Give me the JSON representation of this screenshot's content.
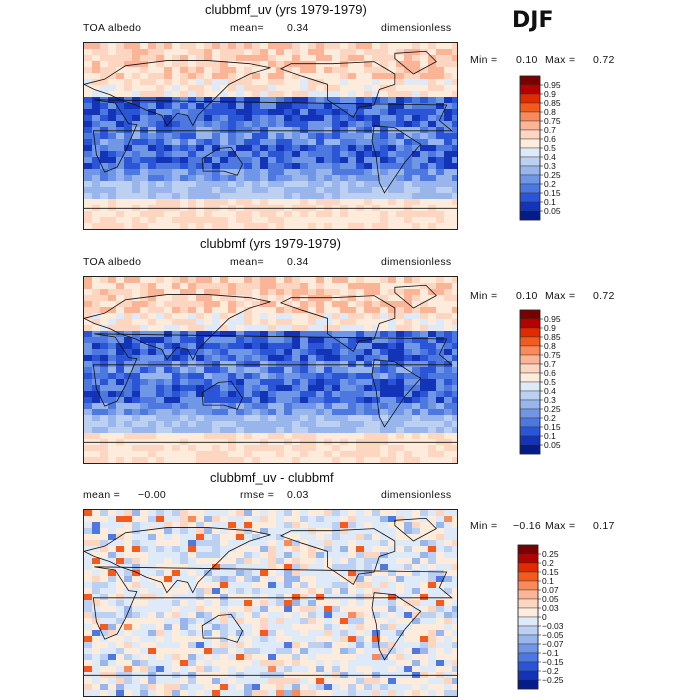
{
  "season": "DJF",
  "panels": [
    {
      "title": "clubbmf_uv (yrs 1979-1979)",
      "left_label": "TOA albedo",
      "mean_label": "mean=",
      "mean_value": "0.34",
      "units": "dimensionless",
      "min_label": "Min =",
      "min_value": "0.10",
      "max_label": "Max =",
      "max_value": "0.72",
      "colorbar_levels": [
        "0.95",
        "0.9",
        "0.85",
        "0.8",
        "0.75",
        "0.7",
        "0.6",
        "0.5",
        "0.4",
        "0.3",
        "0.25",
        "0.2",
        "0.15",
        "0.1",
        "0.05"
      ],
      "colorbar_colors": [
        "#7a0000",
        "#b50000",
        "#e02a00",
        "#f25a1e",
        "#fa8a5a",
        "#fbb596",
        "#fcd6c0",
        "#fdebdc",
        "#dfeaf8",
        "#bcd0f2",
        "#98b5ec",
        "#7096e6",
        "#4c78e0",
        "#2a55d6",
        "#1434b8",
        "#041c8a"
      ],
      "map_kind": "full"
    },
    {
      "title": "clubbmf (yrs 1979-1979)",
      "left_label": "TOA albedo",
      "mean_label": "mean=",
      "mean_value": "0.34",
      "units": "dimensionless",
      "min_label": "Min =",
      "min_value": "0.10",
      "max_label": "Max =",
      "max_value": "0.72",
      "colorbar_levels": [
        "0.95",
        "0.9",
        "0.85",
        "0.8",
        "0.75",
        "0.7",
        "0.6",
        "0.5",
        "0.4",
        "0.3",
        "0.25",
        "0.2",
        "0.15",
        "0.1",
        "0.05"
      ],
      "colorbar_colors": [
        "#7a0000",
        "#b50000",
        "#e02a00",
        "#f25a1e",
        "#fa8a5a",
        "#fbb596",
        "#fcd6c0",
        "#fdebdc",
        "#dfeaf8",
        "#bcd0f2",
        "#98b5ec",
        "#7096e6",
        "#4c78e0",
        "#2a55d6",
        "#1434b8",
        "#041c8a"
      ],
      "map_kind": "full"
    },
    {
      "title": "clubbmf_uv - clubbmf",
      "left_label": "mean =",
      "left_value": "−0.00",
      "mid_label": "rmse =",
      "mid_value": "0.03",
      "units": "dimensionless",
      "min_label": "Min =",
      "min_value": "−0.16",
      "max_label": "Max =",
      "max_value": "0.17",
      "colorbar_levels": [
        "0.25",
        "0.2",
        "0.15",
        "0.1",
        "0.07",
        "0.05",
        "0.03",
        "0",
        "−0.03",
        "−0.05",
        "−0.07",
        "−0.1",
        "−0.15",
        "−0.2",
        "−0.25"
      ],
      "colorbar_colors": [
        "#7a0000",
        "#b50000",
        "#e02a00",
        "#f25a1e",
        "#fa8a5a",
        "#fbb596",
        "#fcd6c0",
        "#fdebdc",
        "#dfeaf8",
        "#bcd0f2",
        "#98b5ec",
        "#7096e6",
        "#4c78e0",
        "#2a55d6",
        "#1434b8",
        "#041c8a"
      ],
      "map_kind": "diff"
    }
  ],
  "chart_data": [
    {
      "type": "heatmap",
      "title": "clubbmf_uv (yrs 1979-1979)",
      "variable": "TOA albedo",
      "season": "DJF",
      "mean": 0.34,
      "min": 0.1,
      "max": 0.72,
      "units": "dimensionless",
      "levels": [
        0.05,
        0.1,
        0.15,
        0.2,
        0.25,
        0.3,
        0.4,
        0.5,
        0.6,
        0.7,
        0.75,
        0.8,
        0.85,
        0.9,
        0.95
      ]
    },
    {
      "type": "heatmap",
      "title": "clubbmf (yrs 1979-1979)",
      "variable": "TOA albedo",
      "season": "DJF",
      "mean": 0.34,
      "min": 0.1,
      "max": 0.72,
      "units": "dimensionless",
      "levels": [
        0.05,
        0.1,
        0.15,
        0.2,
        0.25,
        0.3,
        0.4,
        0.5,
        0.6,
        0.7,
        0.75,
        0.8,
        0.85,
        0.9,
        0.95
      ]
    },
    {
      "type": "heatmap",
      "title": "clubbmf_uv - clubbmf",
      "season": "DJF",
      "mean": -0.0,
      "rmse": 0.03,
      "min": -0.16,
      "max": 0.17,
      "units": "dimensionless",
      "levels": [
        -0.25,
        -0.2,
        -0.15,
        -0.1,
        -0.07,
        -0.05,
        -0.03,
        0,
        0.03,
        0.05,
        0.07,
        0.1,
        0.15,
        0.2,
        0.25
      ]
    }
  ]
}
